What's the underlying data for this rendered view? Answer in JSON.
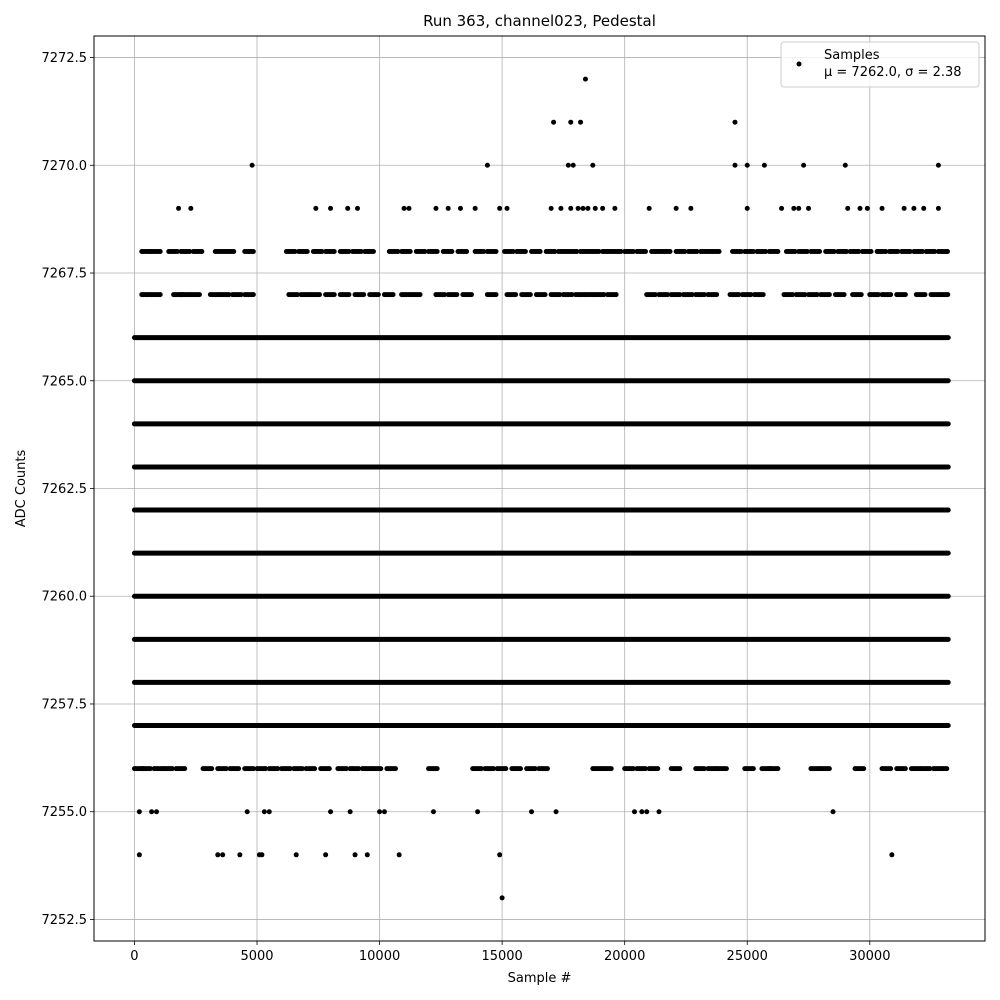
{
  "chart_data": {
    "type": "scatter",
    "title": "Run 363, channel023, Pedestal",
    "xlabel": "Sample #",
    "ylabel": "ADC Counts",
    "xlim": [
      -1650,
      34700
    ],
    "ylim": [
      7252.0,
      7273.0
    ],
    "xticks": [
      0,
      5000,
      10000,
      15000,
      20000,
      25000,
      30000
    ],
    "xtick_labels": [
      "0",
      "5000",
      "10000",
      "15000",
      "20000",
      "25000",
      "30000"
    ],
    "yticks": [
      7252.5,
      7255.0,
      7257.5,
      7260.0,
      7262.5,
      7265.0,
      7267.5,
      7270.0,
      7272.5
    ],
    "ytick_labels": [
      "7252.5",
      "7255.0",
      "7257.5",
      "7260.0",
      "7262.5",
      "7265.0",
      "7267.5",
      "7270.0",
      "7272.5"
    ],
    "grid": true,
    "legend_position": "top-right",
    "marker_color": "#000000",
    "n_samples": 33200,
    "series": [
      {
        "name": "Samples",
        "stats_label": "μ = 7262.0, σ = 2.38",
        "dense_levels": [
          7257,
          7258,
          7259,
          7260,
          7261,
          7262,
          7263,
          7264,
          7265,
          7266
        ],
        "medium_levels": [
          {
            "y": 7256,
            "x": [
              0,
              300,
              800,
              1200,
              1700,
              2800,
              3400,
              3900,
              4500,
              5000,
              5500,
              6000,
              6500,
              7000,
              7600,
              8300,
              8800,
              9300,
              9700,
              10300,
              12000,
              13800,
              14300,
              14800,
              15400,
              16000,
              16500,
              18700,
              19100,
              20000,
              20500,
              21000,
              21900,
              22900,
              23400,
              23800,
              24900,
              25600,
              25900,
              27600,
              28000,
              29400,
              30500,
              31100,
              31700,
              32100,
              32600,
              33000
            ]
          },
          {
            "y": 7267,
            "x": [
              300,
              700,
              1600,
              1900,
              2300,
              3100,
              3500,
              4000,
              4500,
              6300,
              6800,
              7200,
              7800,
              8400,
              9000,
              9600,
              10200,
              10900,
              11300,
              12300,
              12800,
              13400,
              14400,
              15200,
              15800,
              16400,
              17000,
              17500,
              18000,
              18400,
              18800,
              19300,
              20900,
              21400,
              21900,
              22400,
              22900,
              23400,
              24300,
              24800,
              25300,
              26500,
              27000,
              27500,
              28000,
              28600,
              29300,
              30000,
              30500,
              31100,
              31900,
              32500,
              32900
            ]
          },
          {
            "y": 7268,
            "x": [
              300,
              700,
              1400,
              1900,
              2400,
              3300,
              3700,
              4500,
              6200,
              6700,
              7300,
              7800,
              8400,
              8900,
              9400,
              10400,
              10900,
              11500,
              12000,
              12600,
              13200,
              13900,
              14400,
              15100,
              15600,
              16200,
              16800,
              17300,
              17700,
              18200,
              18600,
              19100,
              19500,
              20000,
              20500,
              21100,
              21500,
              22100,
              22600,
              23100,
              23500,
              24400,
              24900,
              25400,
              25900,
              26600,
              27100,
              27600,
              28200,
              28700,
              29200,
              29700,
              30300,
              30800,
              31300,
              31800,
              32300,
              32800,
              33100
            ]
          }
        ],
        "sparse_points": [
          [
            1800,
            7269
          ],
          [
            2300,
            7269
          ],
          [
            7400,
            7269
          ],
          [
            8000,
            7269
          ],
          [
            8700,
            7269
          ],
          [
            9100,
            7269
          ],
          [
            11000,
            7269
          ],
          [
            11200,
            7269
          ],
          [
            12300,
            7269
          ],
          [
            12800,
            7269
          ],
          [
            13300,
            7269
          ],
          [
            13900,
            7269
          ],
          [
            14900,
            7269
          ],
          [
            15200,
            7269
          ],
          [
            17000,
            7269
          ],
          [
            17400,
            7269
          ],
          [
            17800,
            7269
          ],
          [
            18100,
            7269
          ],
          [
            18300,
            7269
          ],
          [
            18500,
            7269
          ],
          [
            18800,
            7269
          ],
          [
            19100,
            7269
          ],
          [
            19600,
            7269
          ],
          [
            21000,
            7269
          ],
          [
            22100,
            7269
          ],
          [
            22700,
            7269
          ],
          [
            25000,
            7269
          ],
          [
            26400,
            7269
          ],
          [
            26900,
            7269
          ],
          [
            27100,
            7269
          ],
          [
            27500,
            7269
          ],
          [
            29100,
            7269
          ],
          [
            29600,
            7269
          ],
          [
            29900,
            7269
          ],
          [
            30500,
            7269
          ],
          [
            31400,
            7269
          ],
          [
            31800,
            7269
          ],
          [
            32200,
            7269
          ],
          [
            32800,
            7269
          ],
          [
            4800,
            7270
          ],
          [
            14400,
            7270
          ],
          [
            17700,
            7270
          ],
          [
            17900,
            7270
          ],
          [
            18700,
            7270
          ],
          [
            24500,
            7270
          ],
          [
            25000,
            7270
          ],
          [
            25700,
            7270
          ],
          [
            27300,
            7270
          ],
          [
            29000,
            7270
          ],
          [
            32800,
            7270
          ],
          [
            17100,
            7271
          ],
          [
            17800,
            7271
          ],
          [
            18200,
            7271
          ],
          [
            24500,
            7271
          ],
          [
            18400,
            7272
          ],
          [
            200,
            7255
          ],
          [
            700,
            7255
          ],
          [
            900,
            7255
          ],
          [
            4600,
            7255
          ],
          [
            5300,
            7255
          ],
          [
            5500,
            7255
          ],
          [
            8000,
            7255
          ],
          [
            8800,
            7255
          ],
          [
            10000,
            7255
          ],
          [
            10200,
            7255
          ],
          [
            12200,
            7255
          ],
          [
            14000,
            7255
          ],
          [
            16200,
            7255
          ],
          [
            17200,
            7255
          ],
          [
            20400,
            7255
          ],
          [
            20700,
            7255
          ],
          [
            20900,
            7255
          ],
          [
            21400,
            7255
          ],
          [
            28500,
            7255
          ],
          [
            200,
            7254
          ],
          [
            3400,
            7254
          ],
          [
            3600,
            7254
          ],
          [
            4300,
            7254
          ],
          [
            5100,
            7254
          ],
          [
            5200,
            7254
          ],
          [
            6600,
            7254
          ],
          [
            7800,
            7254
          ],
          [
            9000,
            7254
          ],
          [
            9500,
            7254
          ],
          [
            10800,
            7254
          ],
          [
            14900,
            7254
          ],
          [
            30900,
            7254
          ],
          [
            15000,
            7253
          ]
        ]
      }
    ]
  }
}
